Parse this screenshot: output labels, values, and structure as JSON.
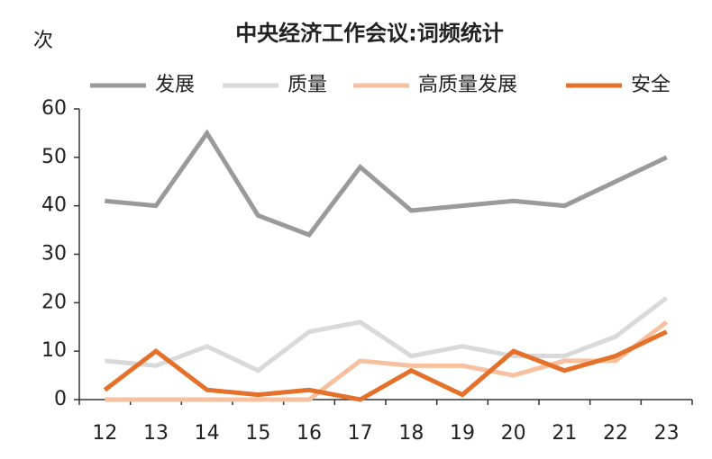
{
  "chart_data": {
    "type": "line",
    "title": "中央经济工作会议:词频统计",
    "y_label": "次",
    "categories": [
      "12",
      "13",
      "14",
      "15",
      "16",
      "17",
      "18",
      "19",
      "20",
      "21",
      "22",
      "23"
    ],
    "series": [
      {
        "name": "发展",
        "color": "#9a9a9a",
        "values": [
          41,
          40,
          55,
          38,
          34,
          48,
          39,
          40,
          41,
          40,
          45,
          50
        ]
      },
      {
        "name": "质量",
        "color": "#d9d9d9",
        "values": [
          8,
          7,
          11,
          6,
          14,
          16,
          9,
          11,
          9,
          9,
          13,
          21
        ]
      },
      {
        "name": "高质量发展",
        "color": "#f7c1a0",
        "values": [
          0,
          0,
          0,
          0,
          0,
          8,
          7,
          7,
          5,
          8,
          8,
          16
        ]
      },
      {
        "name": "安全",
        "color": "#e4702a",
        "values": [
          2,
          10,
          2,
          1,
          2,
          0,
          6,
          1,
          10,
          6,
          9,
          14
        ]
      }
    ],
    "ylim": [
      0,
      60
    ],
    "yticks": [
      0,
      10,
      20,
      30,
      40,
      50,
      60
    ],
    "grid": false
  }
}
